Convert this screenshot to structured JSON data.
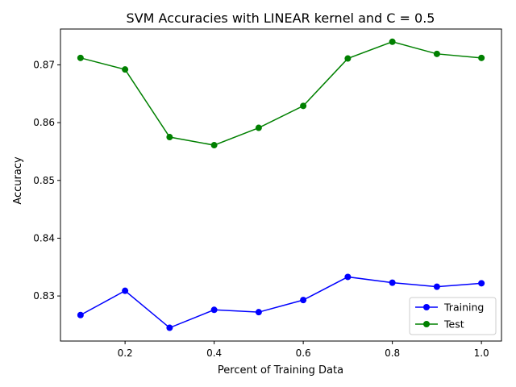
{
  "chart_data": {
    "type": "line",
    "title": "SVM Accuracies with LINEAR kernel and C = 0.5",
    "xlabel": "Percent of Training Data",
    "ylabel": "Accuracy",
    "x": [
      0.1,
      0.2,
      0.3,
      0.4,
      0.5,
      0.6,
      0.7,
      0.8,
      0.9,
      1.0
    ],
    "xlim": [
      0.055,
      1.045
    ],
    "ylim": [
      0.8222,
      0.8762
    ],
    "xticks": [
      0.2,
      0.4,
      0.6,
      0.8,
      1.0
    ],
    "xtick_labels": [
      "0.2",
      "0.4",
      "0.6",
      "0.8",
      "1.0"
    ],
    "yticks": [
      0.83,
      0.84,
      0.85,
      0.86,
      0.87
    ],
    "ytick_labels": [
      "0.83",
      "0.84",
      "0.85",
      "0.86",
      "0.87"
    ],
    "series": [
      {
        "name": "Training",
        "color": "#0000ff",
        "values": [
          0.8267,
          0.8309,
          0.8245,
          0.8276,
          0.8272,
          0.8293,
          0.8333,
          0.8323,
          0.8316,
          0.8322
        ]
      },
      {
        "name": "Test",
        "color": "#008000",
        "values": [
          0.8712,
          0.8692,
          0.8575,
          0.8561,
          0.8591,
          0.8629,
          0.8711,
          0.874,
          0.8719,
          0.8712
        ]
      }
    ],
    "legend": {
      "position": "lower-right"
    },
    "grid": false,
    "marker": "circle"
  }
}
